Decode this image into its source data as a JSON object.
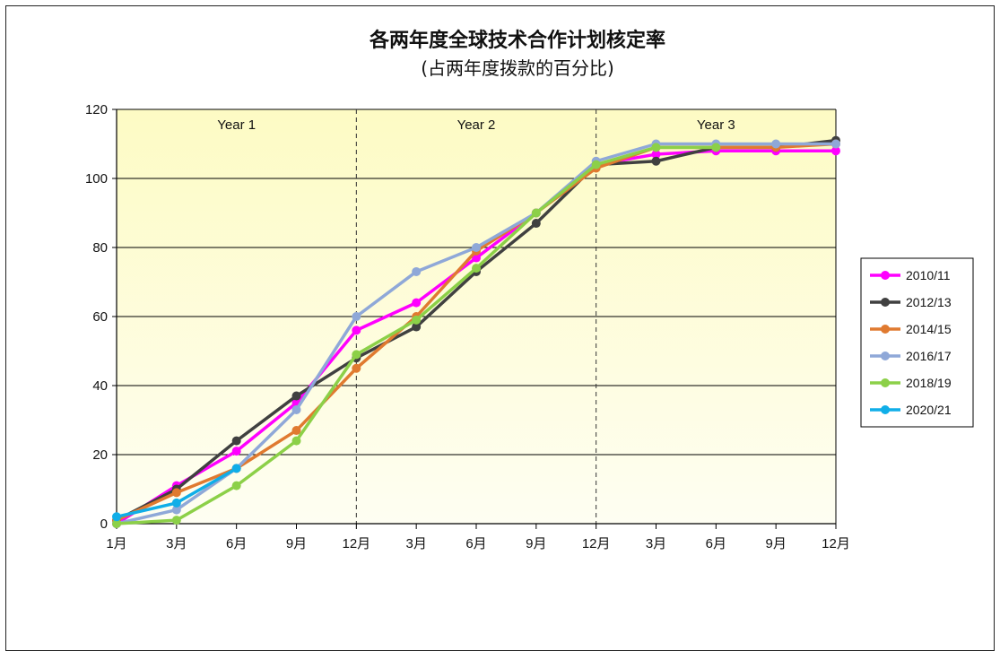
{
  "chart_data": {
    "type": "line",
    "title": "各两年度全球技术合作计划核定率",
    "subtitle": "(占两年度拨款的百分比)",
    "xlabel": "",
    "ylabel": "",
    "categories": [
      "1月",
      "3月",
      "6月",
      "9月",
      "12月",
      "3月",
      "6月",
      "9月",
      "12月",
      "3月",
      "6月",
      "9月",
      "12月"
    ],
    "ylim": [
      0,
      120
    ],
    "yticks": [
      0,
      20,
      40,
      60,
      80,
      100,
      120
    ],
    "grid": true,
    "legend_position": "right",
    "periods": [
      "Year 1",
      "Year 2",
      "Year 3"
    ],
    "series": [
      {
        "name": "2010/11",
        "color": "#ff00ff",
        "values": [
          0,
          11,
          21,
          35,
          56,
          64,
          77,
          90,
          104,
          107,
          108,
          108,
          108
        ]
      },
      {
        "name": "2012/13",
        "color": "#404040",
        "values": [
          1,
          10,
          24,
          37,
          48,
          57,
          73,
          87,
          104,
          105,
          109,
          109,
          111
        ]
      },
      {
        "name": "2014/15",
        "color": "#e07a30",
        "values": [
          1,
          9,
          16,
          27,
          45,
          60,
          79,
          90,
          103,
          109,
          109,
          109,
          110
        ]
      },
      {
        "name": "2016/17",
        "color": "#8fa8d8",
        "values": [
          0,
          4,
          16,
          33,
          60,
          73,
          80,
          90,
          105,
          110,
          110,
          110,
          110
        ]
      },
      {
        "name": "2018/19",
        "color": "#8cd048",
        "values": [
          0,
          1,
          11,
          24,
          49,
          59,
          74,
          90,
          104,
          109,
          109,
          null,
          null
        ]
      },
      {
        "name": "2020/21",
        "color": "#10aee8",
        "values": [
          2,
          6,
          16,
          null,
          null,
          null,
          null,
          null,
          null,
          null,
          null,
          null,
          null
        ]
      }
    ]
  }
}
